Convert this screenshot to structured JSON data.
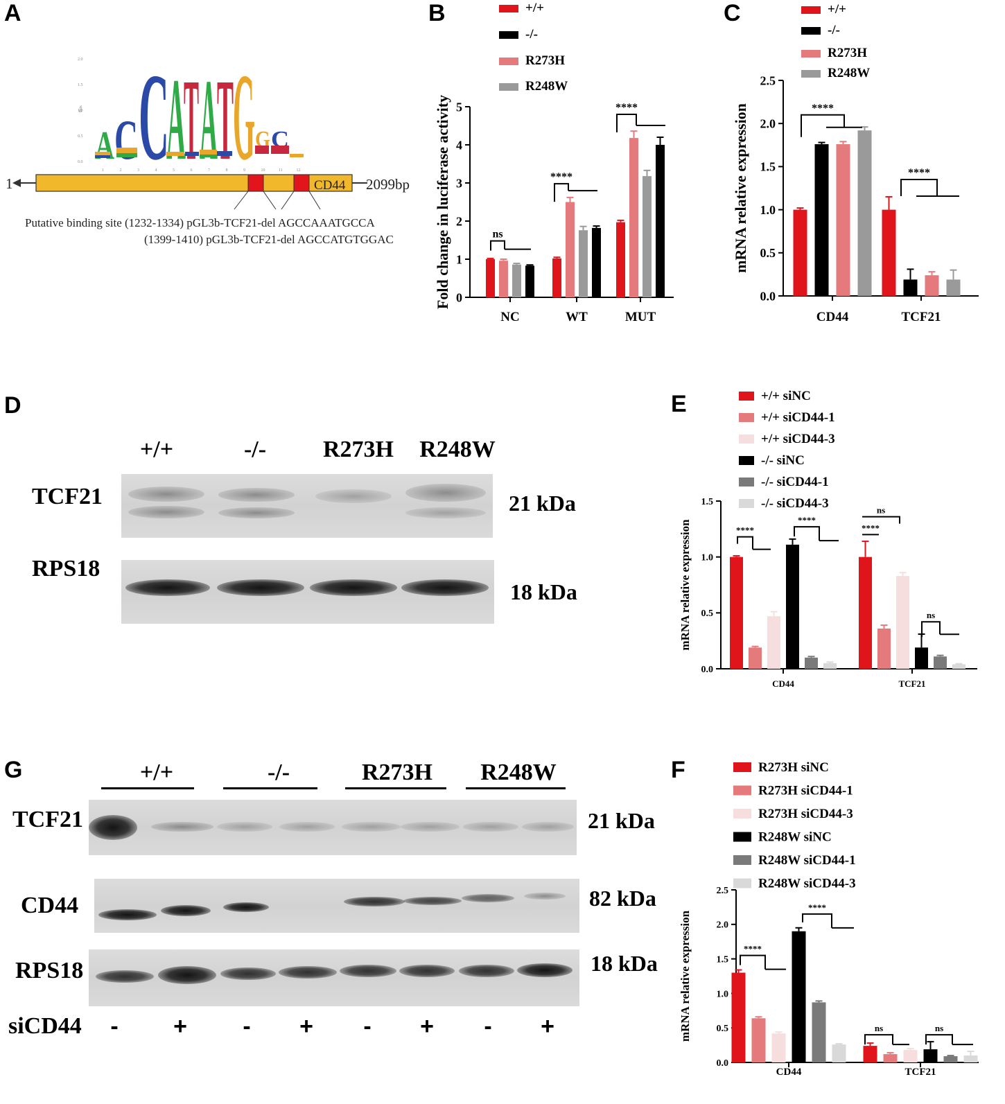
{
  "panels": {
    "A": "A",
    "B": "B",
    "C": "C",
    "D": "D",
    "E": "E",
    "F": "F",
    "G": "G"
  },
  "panelA": {
    "logo_letters_top": [
      "A",
      "C",
      "C",
      "A",
      "T",
      "A",
      "T",
      "G",
      "G",
      "C"
    ],
    "logo_yticks": [
      "2.0",
      "1.5",
      "1.0",
      "0.5",
      "0.0"
    ],
    "logo_ylabel": "Bits",
    "logo_positions": [
      "1",
      "2",
      "3",
      "4",
      "5",
      "6",
      "7",
      "8",
      "9",
      "10",
      "11",
      "12"
    ],
    "start_label": "1",
    "gene_label": "CD44",
    "end_label": "2099bp",
    "site_line1": "Putative binding site (1232-1334) pGL3b-TCF21-del AGCCAAATGCCA",
    "site_line2": "(1399-1410) pGL3b-TCF21-del AGCCATGTGGAC"
  },
  "colors": {
    "wt": "#e0151c",
    "ko": "#000000",
    "r273h": "#e57a7d",
    "r248w": "#9a9a9a",
    "si_light": "#f7dede",
    "dark_grey": "#7a7a7a",
    "light_grey": "#d9d9d9"
  },
  "western_D": {
    "lanes": [
      "+/+",
      "-/-",
      "R273H",
      "R248W"
    ],
    "proteins": [
      "TCF21",
      "RPS18"
    ],
    "sizes": [
      "21 kDa",
      "18 kDa"
    ]
  },
  "western_G": {
    "groups": [
      "+/+",
      "-/-",
      "R273H",
      "R248W"
    ],
    "proteins": [
      "TCF21",
      "CD44",
      "RPS18"
    ],
    "sizes": [
      "21 kDa",
      "82 kDa",
      "18 kDa"
    ],
    "treatment_label": "siCD44",
    "treatment_signs": [
      "-",
      "+",
      "-",
      "+",
      "-",
      "+",
      "-",
      "+"
    ]
  },
  "chart_data": [
    {
      "panel": "B",
      "type": "bar",
      "ylabel": "Fold change in luciferase activity",
      "ylim": [
        0,
        5
      ],
      "yticks": [
        "0",
        "1",
        "2",
        "3",
        "4",
        "5"
      ],
      "categories": [
        "NC",
        "WT",
        "MUT"
      ],
      "series": [
        {
          "name": "+/+",
          "values": [
            1.0,
            1.02,
            1.97
          ],
          "errors": [
            0.02,
            0.03,
            0.05
          ]
        },
        {
          "name": "R273H",
          "values": [
            0.96,
            2.5,
            4.18
          ],
          "errors": [
            0.04,
            0.12,
            0.18
          ]
        },
        {
          "name": "R248W",
          "values": [
            0.86,
            1.76,
            3.18
          ],
          "errors": [
            0.03,
            0.1,
            0.15
          ]
        },
        {
          "name": "-/-",
          "values": [
            0.83,
            1.82,
            4.0
          ],
          "errors": [
            0.02,
            0.05,
            0.2
          ]
        }
      ],
      "legend": [
        "+/+",
        "-/-",
        "R273H",
        "R248W"
      ],
      "annotations": [
        "ns",
        "****",
        "****"
      ]
    },
    {
      "panel": "C",
      "type": "bar",
      "ylabel": "mRNA relative expression",
      "ylim": [
        0,
        2.5
      ],
      "yticks": [
        "0.0",
        "0.5",
        "1.0",
        "1.5",
        "2.0",
        "2.5"
      ],
      "categories": [
        "CD44",
        "TCF21"
      ],
      "series": [
        {
          "name": "+/+",
          "values": [
            1.0,
            1.0
          ],
          "errors": [
            0.02,
            0.15
          ]
        },
        {
          "name": "-/-",
          "values": [
            1.76,
            0.19
          ],
          "errors": [
            0.02,
            0.12
          ]
        },
        {
          "name": "R273H",
          "values": [
            1.76,
            0.24
          ],
          "errors": [
            0.03,
            0.04
          ]
        },
        {
          "name": "R248W",
          "values": [
            1.92,
            0.19
          ],
          "errors": [
            0.04,
            0.11
          ]
        }
      ],
      "legend": [
        "+/+",
        "-/-",
        "R273H",
        "R248W"
      ],
      "annotations": [
        "****",
        "****"
      ]
    },
    {
      "panel": "E",
      "type": "bar",
      "ylabel": "mRNA relative expression",
      "ylim": [
        0,
        1.5
      ],
      "yticks": [
        "0.0",
        "0.5",
        "1.0",
        "1.5"
      ],
      "categories": [
        "CD44",
        "TCF21"
      ],
      "series": [
        {
          "name": "+/+ siNC",
          "values": [
            1.0,
            1.0
          ],
          "errors": [
            0.01,
            0.14
          ]
        },
        {
          "name": "+/+ siCD44-1",
          "values": [
            0.19,
            0.36
          ],
          "errors": [
            0.01,
            0.03
          ]
        },
        {
          "name": "+/+ siCD44-3",
          "values": [
            0.47,
            0.83
          ],
          "errors": [
            0.04,
            0.03
          ]
        },
        {
          "name": "-/- siNC",
          "values": [
            1.11,
            0.19
          ],
          "errors": [
            0.05,
            0.12
          ]
        },
        {
          "name": "-/- siCD44-1",
          "values": [
            0.1,
            0.11
          ],
          "errors": [
            0.01,
            0.01
          ]
        },
        {
          "name": "-/- siCD44-3",
          "values": [
            0.05,
            0.04
          ],
          "errors": [
            0.01,
            0.005
          ]
        }
      ],
      "legend": [
        "+/+ siNC",
        "+/+ siCD44-1",
        "+/+ siCD44-3",
        "-/- siNC",
        "-/- siCD44-1",
        "-/- siCD44-3"
      ],
      "annotations": [
        "****",
        "****",
        "****",
        "ns",
        "ns"
      ]
    },
    {
      "panel": "F",
      "type": "bar",
      "ylabel": "mRNA relative expression",
      "ylim": [
        0,
        2.5
      ],
      "yticks": [
        "0.0",
        "0.5",
        "1.0",
        "1.5",
        "2.0",
        "2.5"
      ],
      "categories": [
        "CD44",
        "TCF21"
      ],
      "series": [
        {
          "name": "R273H siNC",
          "values": [
            1.3,
            0.24
          ],
          "errors": [
            0.04,
            0.04
          ]
        },
        {
          "name": "R273H siCD44-1",
          "values": [
            0.64,
            0.12
          ],
          "errors": [
            0.02,
            0.02
          ]
        },
        {
          "name": "R273H siCD44-3",
          "values": [
            0.42,
            0.18
          ],
          "errors": [
            0.02,
            0.02
          ]
        },
        {
          "name": "R248W siNC",
          "values": [
            1.9,
            0.19
          ],
          "errors": [
            0.05,
            0.11
          ]
        },
        {
          "name": "R248W siCD44-1",
          "values": [
            0.87,
            0.09
          ],
          "errors": [
            0.02,
            0.01
          ]
        },
        {
          "name": "R248W siCD44-3",
          "values": [
            0.26,
            0.1
          ],
          "errors": [
            0.01,
            0.06
          ]
        }
      ],
      "legend": [
        "R273H siNC",
        "R273H siCD44-1",
        "R273H siCD44-3",
        "R248W siNC",
        "R248W siCD44-1",
        "R248W siCD44-3"
      ],
      "annotations": [
        "****",
        "****",
        "ns",
        "ns"
      ]
    }
  ]
}
